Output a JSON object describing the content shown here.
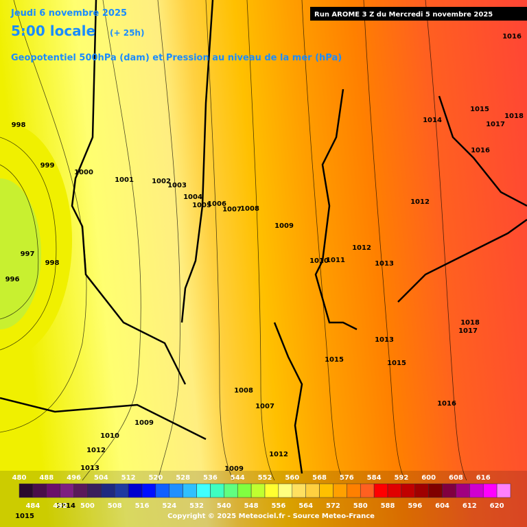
{
  "header": {
    "date": "Jeudi 6 novembre 2025",
    "time": "5:00 locale",
    "lead": "(+ 25h)",
    "subtitle": "Geopotentiel 500hPa (dam) et Pression au niveau de la mer (hPa)",
    "run": "Run AROME 3 Z du Mercredi 5 novembre 2025"
  },
  "pressure_labels": [
    998,
    999,
    1000,
    1001,
    1002,
    1003,
    1004,
    1005,
    1006,
    1007,
    1008,
    1009,
    1010,
    1011,
    1012,
    1013,
    1012,
    1014,
    1015,
    1016,
    1017,
    1018,
    1016,
    997,
    998,
    996,
    1018,
    1017,
    1013,
    1015,
    1015,
    1016,
    1008,
    1007,
    1009,
    1010,
    1012,
    1013,
    1009,
    1012,
    1014,
    1015
  ],
  "legend": {
    "values": [
      480,
      484,
      488,
      492,
      496,
      500,
      504,
      508,
      512,
      516,
      520,
      524,
      528,
      532,
      536,
      540,
      544,
      548,
      552,
      556,
      560,
      564,
      568,
      572,
      576,
      580,
      584,
      588,
      592,
      596,
      600,
      604,
      608,
      612,
      616,
      620
    ],
    "colors": [
      "#2b0a2e",
      "#4a0f4a",
      "#6a0f6a",
      "#7d1f80",
      "#5a1a5a",
      "#3a1f5c",
      "#1f2a80",
      "#1f3aa0",
      "#0000d0",
      "#0010ff",
      "#1060ff",
      "#2090ff",
      "#30c0ff",
      "#40ffff",
      "#40ffc0",
      "#60ff80",
      "#80ff40",
      "#c0ff30",
      "#ffff30",
      "#ffff80",
      "#ffe060",
      "#ffd040",
      "#ffc000",
      "#ffa000",
      "#ff8000",
      "#ff6020",
      "#ff0000",
      "#e00000",
      "#c00000",
      "#a00000",
      "#800000",
      "#800040",
      "#a00080",
      "#d000d0",
      "#ff00ff",
      "#ff80ff"
    ]
  },
  "footer": {
    "copyright": "Copyright © 2025 Meteociel.fr - Source Meteo-France"
  }
}
